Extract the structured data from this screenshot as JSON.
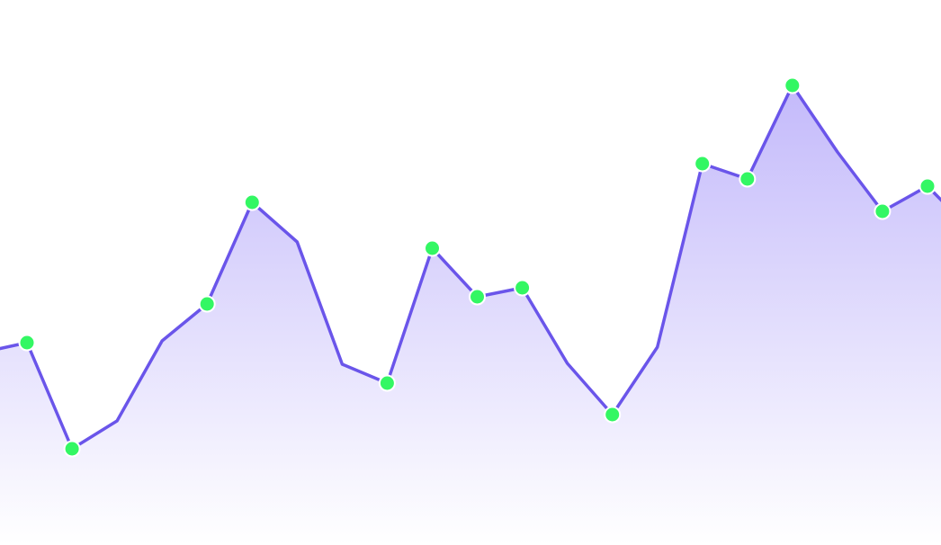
{
  "chart_data": {
    "type": "area",
    "title": "",
    "xlabel": "",
    "ylabel": "",
    "grid": false,
    "legend": "none",
    "x": [
      0,
      1,
      2,
      3,
      4,
      5,
      6,
      7,
      8,
      9,
      10,
      11,
      12,
      13,
      14,
      15,
      16,
      17,
      18,
      19,
      20,
      21,
      22
    ],
    "xlim": [
      0.4,
      21.3
    ],
    "ylim": [
      0,
      606
    ],
    "series": [
      {
        "values": [
          214,
          225,
          107,
          138,
          227,
          268,
          381,
          337,
          201,
          180,
          330,
          276,
          286,
          202,
          145,
          220,
          424,
          407,
          511,
          437,
          371,
          399,
          348
        ],
        "markers": [
          false,
          true,
          true,
          false,
          false,
          true,
          true,
          false,
          false,
          true,
          true,
          true,
          true,
          false,
          true,
          false,
          true,
          true,
          true,
          false,
          true,
          true,
          false
        ],
        "line_color": "#6a55ea",
        "fill_color": "#7b65f5",
        "marker_color": "#33f763",
        "marker_stroke": "#ffffff"
      }
    ]
  }
}
